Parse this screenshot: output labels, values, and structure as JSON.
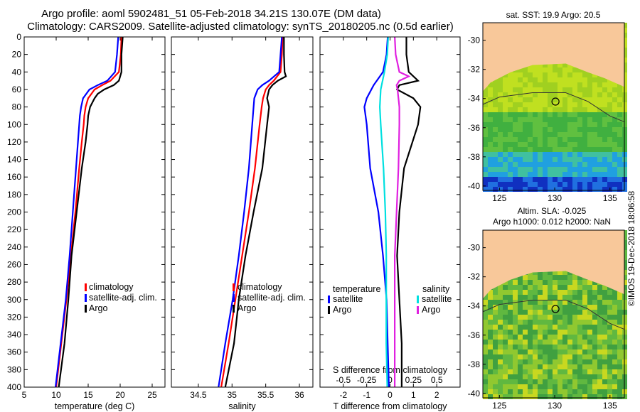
{
  "title_line1": "Argo profile: aoml 5902481_51 05-Feb-2018 34.21S 130.07E (DM data)",
  "title_line2": "Climatology: CARS2009. Satellite-adjusted climatology: synTS_20180205.nc (0.5d earlier)",
  "copyright": "©IMOS 19-Dec-2018 18:06:58",
  "colors": {
    "climatology": "#ff0000",
    "satellite": "#0000ff",
    "argo": "#000000",
    "sat_cyan": "#00e0e0",
    "argo_magenta": "#e020e0",
    "land": "#f8c89a"
  },
  "chart_data": [
    {
      "type": "line",
      "name": "temperature",
      "xlabel": "temperature (deg C)",
      "ylabel": "",
      "xlim": [
        5,
        27
      ],
      "ylim": [
        0,
        400
      ],
      "xticks": [
        5,
        10,
        15,
        20,
        25
      ],
      "xtick_labels": [
        "5",
        "10",
        "15",
        "20",
        "25"
      ],
      "yticks": [
        0,
        20,
        40,
        60,
        80,
        100,
        120,
        140,
        160,
        180,
        200,
        220,
        240,
        260,
        280,
        300,
        320,
        340,
        360,
        380,
        400
      ],
      "ytick_labels": [
        "0",
        "20",
        "40",
        "60",
        "80",
        "100",
        "120",
        "140",
        "160",
        "180",
        "200",
        "220",
        "240",
        "260",
        "280",
        "300",
        "320",
        "340",
        "360",
        "380",
        "400"
      ],
      "legend": [
        "climatology",
        "satellite-adj. clim.",
        "Argo"
      ],
      "series": [
        {
          "name": "climatology",
          "color": "#ff0000",
          "depth": [
            0,
            20,
            40,
            50,
            55,
            60,
            70,
            80,
            90,
            100,
            120,
            150,
            200,
            250,
            300,
            350,
            400
          ],
          "values": [
            20.2,
            20.1,
            19.8,
            18.5,
            17.2,
            16,
            15,
            14.6,
            14.4,
            14.3,
            14,
            13.6,
            13,
            12.3,
            11.6,
            10.8,
            10
          ]
        },
        {
          "name": "satellite-adj. clim.",
          "color": "#0000ff",
          "depth": [
            0,
            20,
            40,
            50,
            55,
            60,
            70,
            80,
            90,
            100,
            120,
            150,
            200,
            250,
            300,
            350,
            400
          ],
          "values": [
            19.7,
            19.5,
            19.2,
            18,
            16.5,
            15.2,
            14.2,
            13.9,
            13.7,
            13.6,
            13.4,
            13.1,
            12.6,
            12.1,
            11.5,
            10.7,
            9.9
          ]
        },
        {
          "name": "Argo",
          "color": "#000000",
          "depth": [
            0,
            20,
            40,
            50,
            55,
            60,
            65,
            70,
            80,
            90,
            100,
            120,
            150,
            200,
            250,
            300,
            350,
            400
          ],
          "values": [
            20.4,
            20.2,
            20.2,
            19.8,
            19,
            17.5,
            16.5,
            16,
            15.3,
            15,
            14.9,
            14.6,
            14,
            13.2,
            12.4,
            11.9,
            11.3,
            10.4
          ]
        }
      ]
    },
    {
      "type": "line",
      "name": "salinity",
      "xlabel": "salinity",
      "ylabel": "",
      "xlim": [
        34.1,
        36.2
      ],
      "ylim": [
        0,
        400
      ],
      "xticks": [
        34.5,
        35,
        35.5,
        36
      ],
      "xtick_labels": [
        "34.5",
        "35",
        "35.5",
        "36"
      ],
      "legend": [
        "climatology",
        "satellite-adj. clim.",
        "Argo"
      ],
      "series": [
        {
          "name": "climatology",
          "color": "#ff0000",
          "depth": [
            0,
            20,
            40,
            50,
            55,
            60,
            70,
            80,
            100,
            150,
            200,
            250,
            300,
            350,
            400
          ],
          "values": [
            35.75,
            35.74,
            35.72,
            35.62,
            35.55,
            35.5,
            35.46,
            35.44,
            35.41,
            35.34,
            35.25,
            35.15,
            35.05,
            34.95,
            34.84
          ]
        },
        {
          "name": "satellite-adj. clim.",
          "color": "#0000ff",
          "depth": [
            0,
            20,
            40,
            50,
            55,
            60,
            70,
            80,
            100,
            150,
            200,
            250,
            300,
            350,
            400
          ],
          "values": [
            35.74,
            35.72,
            35.7,
            35.55,
            35.45,
            35.38,
            35.33,
            35.32,
            35.3,
            35.25,
            35.18,
            35.1,
            35.01,
            34.9,
            34.8
          ]
        },
        {
          "name": "Argo",
          "color": "#000000",
          "depth": [
            0,
            20,
            40,
            45,
            50,
            55,
            60,
            70,
            80,
            100,
            150,
            200,
            250,
            300,
            350,
            400
          ],
          "values": [
            35.77,
            35.77,
            35.78,
            35.8,
            35.68,
            35.6,
            35.55,
            35.52,
            35.55,
            35.52,
            35.45,
            35.32,
            35.2,
            35.1,
            35.03,
            34.9
          ]
        }
      ]
    },
    {
      "type": "line",
      "name": "difference",
      "xlabel": "T difference from climatology",
      "x2label": "S difference from climatology",
      "xlim": [
        -3,
        3
      ],
      "x2lim": [
        -0.75,
        0.75
      ],
      "ylim": [
        0,
        400
      ],
      "xticks": [
        -2,
        -1,
        0,
        1,
        2
      ],
      "xtick_labels": [
        "-2",
        "-1",
        "0",
        "1",
        "2"
      ],
      "x2ticks": [
        -0.5,
        -0.25,
        0,
        0.25,
        0.5
      ],
      "x2tick_labels": [
        "-0.5",
        "-0.25",
        "0",
        "0.25",
        "0.5"
      ],
      "legend_left": {
        "title": "temperature",
        "items": [
          "satellite",
          "Argo"
        ]
      },
      "legend_right": {
        "title": "salinity",
        "items": [
          "satellite",
          "Argo"
        ]
      },
      "series": [
        {
          "name": "T satellite",
          "axis": "T",
          "color": "#0000ff",
          "depth": [
            0,
            20,
            40,
            55,
            60,
            70,
            80,
            100,
            150,
            200,
            250,
            300,
            350,
            400
          ],
          "values": [
            -0.1,
            -0.15,
            -0.3,
            -0.7,
            -0.8,
            -1,
            -1.1,
            -1,
            -0.85,
            -0.5,
            -0.3,
            -0.15,
            -0.1,
            -0.05
          ]
        },
        {
          "name": "T Argo",
          "axis": "T",
          "color": "#000000",
          "depth": [
            0,
            20,
            40,
            50,
            55,
            60,
            70,
            80,
            100,
            150,
            200,
            250,
            300,
            350,
            400
          ],
          "values": [
            0.7,
            0.7,
            0.8,
            1.2,
            0.4,
            0.3,
            1.0,
            1.3,
            1.2,
            0.6,
            0.4,
            0.3,
            0.4,
            0.5,
            0.5
          ]
        },
        {
          "name": "S satellite",
          "axis": "S",
          "color": "#00e0e0",
          "depth": [
            0,
            20,
            40,
            60,
            80,
            100,
            150,
            200,
            250,
            300,
            350,
            400
          ],
          "values": [
            -0.02,
            -0.03,
            -0.06,
            -0.1,
            -0.11,
            -0.1,
            -0.07,
            -0.05,
            -0.04,
            -0.04,
            -0.04,
            -0.03
          ]
        },
        {
          "name": "S Argo",
          "axis": "S",
          "color": "#e020e0",
          "depth": [
            0,
            20,
            40,
            45,
            50,
            55,
            60,
            80,
            100,
            150,
            200,
            250,
            300,
            350,
            400
          ],
          "values": [
            0.05,
            0.06,
            0.1,
            0.2,
            0.1,
            0.07,
            0.08,
            0.1,
            0.1,
            0.09,
            0.07,
            0.05,
            0.05,
            0.05,
            0.05
          ]
        }
      ]
    },
    {
      "type": "heatmap",
      "name": "sst_map",
      "title": "sat. SST: 19.9 Argo: 20.5",
      "xticks": [
        125,
        130,
        135
      ],
      "xtick_labels": [
        "125",
        "130",
        "135"
      ],
      "yticks": [
        -30,
        -32,
        -34,
        -36,
        -38,
        -40
      ],
      "ytick_labels": [
        "-30",
        "-32",
        "-34",
        "-36",
        "-38",
        "-40"
      ],
      "xlim": [
        123.5,
        136.3
      ],
      "ylim": [
        -40.3,
        -28.8
      ],
      "marker": [
        130.07,
        -34.21
      ]
    },
    {
      "type": "heatmap",
      "name": "sla_map",
      "title": "Altim. SLA: -0.025",
      "subtitle": "Argo h1000: 0.012 h2000: NaN",
      "xticks": [
        125,
        130,
        135
      ],
      "xtick_labels": [
        "125",
        "130",
        "135"
      ],
      "yticks": [
        -30,
        -32,
        -34,
        -36,
        -38,
        -40
      ],
      "ytick_labels": [
        "-30",
        "-32",
        "-34",
        "-36",
        "-38",
        "-40"
      ],
      "xlim": [
        123.5,
        136.3
      ],
      "ylim": [
        -40.3,
        -28.8
      ],
      "marker": [
        130.07,
        -34.21
      ]
    }
  ]
}
